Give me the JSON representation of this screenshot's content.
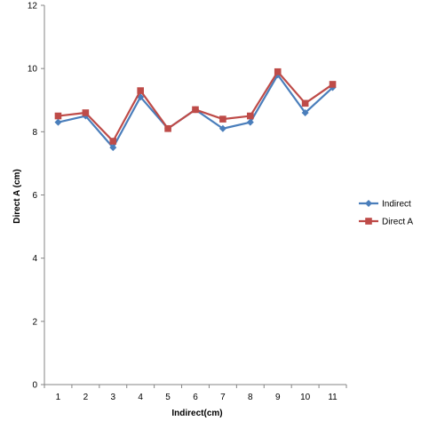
{
  "chart_data": {
    "type": "line",
    "title": "",
    "xlabel": "Indirect(cm)",
    "ylabel": "Direct A (cm)",
    "categories": [
      "1",
      "2",
      "3",
      "4",
      "5",
      "6",
      "7",
      "8",
      "9",
      "10",
      "11"
    ],
    "ylim": [
      0,
      12
    ],
    "yticks": [
      "0",
      "2",
      "4",
      "6",
      "8",
      "10",
      "12"
    ],
    "grid": false,
    "legend_position": "right",
    "series": [
      {
        "name": "Indirect",
        "marker": "diamond",
        "color": "#4a7ebb",
        "values": [
          8.3,
          8.5,
          7.5,
          9.1,
          8.1,
          8.7,
          8.1,
          8.3,
          9.8,
          8.6,
          9.4
        ]
      },
      {
        "name": "Direct A",
        "marker": "square",
        "color": "#be4b48",
        "values": [
          8.5,
          8.6,
          7.7,
          9.3,
          8.1,
          8.7,
          8.4,
          8.5,
          9.9,
          8.9,
          9.5
        ]
      }
    ]
  }
}
